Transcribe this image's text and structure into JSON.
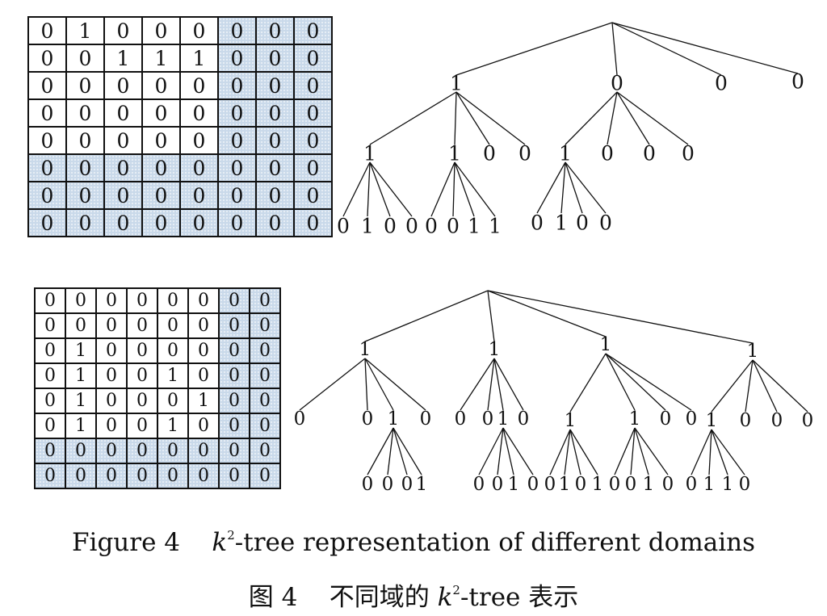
{
  "figure": {
    "grids": [
      {
        "shade_color": "#c9d9ea",
        "cells": [
          [
            "0",
            "1",
            "0",
            "0",
            "0",
            "0",
            "0",
            "0"
          ],
          [
            "0",
            "0",
            "1",
            "1",
            "1",
            "0",
            "0",
            "0"
          ],
          [
            "0",
            "0",
            "0",
            "0",
            "0",
            "0",
            "0",
            "0"
          ],
          [
            "0",
            "0",
            "0",
            "0",
            "0",
            "0",
            "0",
            "0"
          ],
          [
            "0",
            "0",
            "0",
            "0",
            "0",
            "0",
            "0",
            "0"
          ],
          [
            "0",
            "0",
            "0",
            "0",
            "0",
            "0",
            "0",
            "0"
          ],
          [
            "0",
            "0",
            "0",
            "0",
            "0",
            "0",
            "0",
            "0"
          ],
          [
            "0",
            "0",
            "0",
            "0",
            "0",
            "0",
            "0",
            "0"
          ]
        ],
        "shaded": [
          [
            0,
            0,
            0,
            0,
            0,
            1,
            1,
            1
          ],
          [
            0,
            0,
            0,
            0,
            0,
            1,
            1,
            1
          ],
          [
            0,
            0,
            0,
            0,
            0,
            1,
            1,
            1
          ],
          [
            0,
            0,
            0,
            0,
            0,
            1,
            1,
            1
          ],
          [
            0,
            0,
            0,
            0,
            0,
            1,
            1,
            1
          ],
          [
            1,
            1,
            1,
            1,
            1,
            1,
            1,
            1
          ],
          [
            1,
            1,
            1,
            1,
            1,
            1,
            1,
            1
          ],
          [
            1,
            1,
            1,
            1,
            1,
            1,
            1,
            1
          ]
        ]
      },
      {
        "shade_color": "#c9d9ea",
        "cells": [
          [
            "0",
            "0",
            "0",
            "0",
            "0",
            "0",
            "0",
            "0"
          ],
          [
            "0",
            "0",
            "0",
            "0",
            "0",
            "0",
            "0",
            "0"
          ],
          [
            "0",
            "1",
            "0",
            "0",
            "0",
            "0",
            "0",
            "0"
          ],
          [
            "0",
            "1",
            "0",
            "0",
            "1",
            "0",
            "0",
            "0"
          ],
          [
            "0",
            "1",
            "0",
            "0",
            "0",
            "1",
            "0",
            "0"
          ],
          [
            "0",
            "1",
            "0",
            "0",
            "1",
            "0",
            "0",
            "0"
          ],
          [
            "0",
            "0",
            "0",
            "0",
            "0",
            "0",
            "0",
            "0"
          ],
          [
            "0",
            "0",
            "0",
            "0",
            "0",
            "0",
            "0",
            "0"
          ]
        ],
        "shaded": [
          [
            0,
            0,
            0,
            0,
            0,
            0,
            1,
            1
          ],
          [
            0,
            0,
            0,
            0,
            0,
            0,
            1,
            1
          ],
          [
            0,
            0,
            0,
            0,
            0,
            0,
            1,
            1
          ],
          [
            0,
            0,
            0,
            0,
            0,
            0,
            1,
            1
          ],
          [
            0,
            0,
            0,
            0,
            0,
            0,
            1,
            1
          ],
          [
            0,
            0,
            0,
            0,
            0,
            0,
            1,
            1
          ],
          [
            1,
            1,
            1,
            1,
            1,
            1,
            1,
            1
          ],
          [
            1,
            1,
            1,
            1,
            1,
            1,
            1,
            1
          ]
        ]
      }
    ],
    "trees": [
      {
        "level1": [
          "1",
          "0",
          "0",
          "0"
        ],
        "level2": [
          "1",
          "1",
          "0",
          "0",
          "1",
          "0",
          "0",
          "0"
        ],
        "level3": [
          "0",
          "1",
          "0",
          "0",
          "0",
          "0",
          "1",
          "1",
          "0",
          "1",
          "0",
          "0"
        ]
      },
      {
        "level1": [
          "1",
          "1",
          "1",
          "1"
        ],
        "level2": [
          "0",
          "0",
          "1",
          "0",
          "0",
          "0",
          "1",
          "0",
          "1",
          "1",
          "0",
          "0",
          "1",
          "0",
          "0",
          "0"
        ],
        "level3": [
          "0",
          "0",
          "0",
          "1",
          "0",
          "0",
          "1",
          "0",
          "0",
          "1",
          "0",
          "1",
          "0",
          "0",
          "1",
          "0",
          "0",
          "1",
          "1",
          "0"
        ]
      }
    ],
    "caption_en": {
      "prefix": "Figure 4",
      "k": "k",
      "sup": "2",
      "rest": "-tree representation of different domains"
    },
    "caption_zh": {
      "prefix": "图 4",
      "middle": "不同域的",
      "k": "k",
      "sup": "2",
      "rest": "-tree 表示"
    }
  }
}
